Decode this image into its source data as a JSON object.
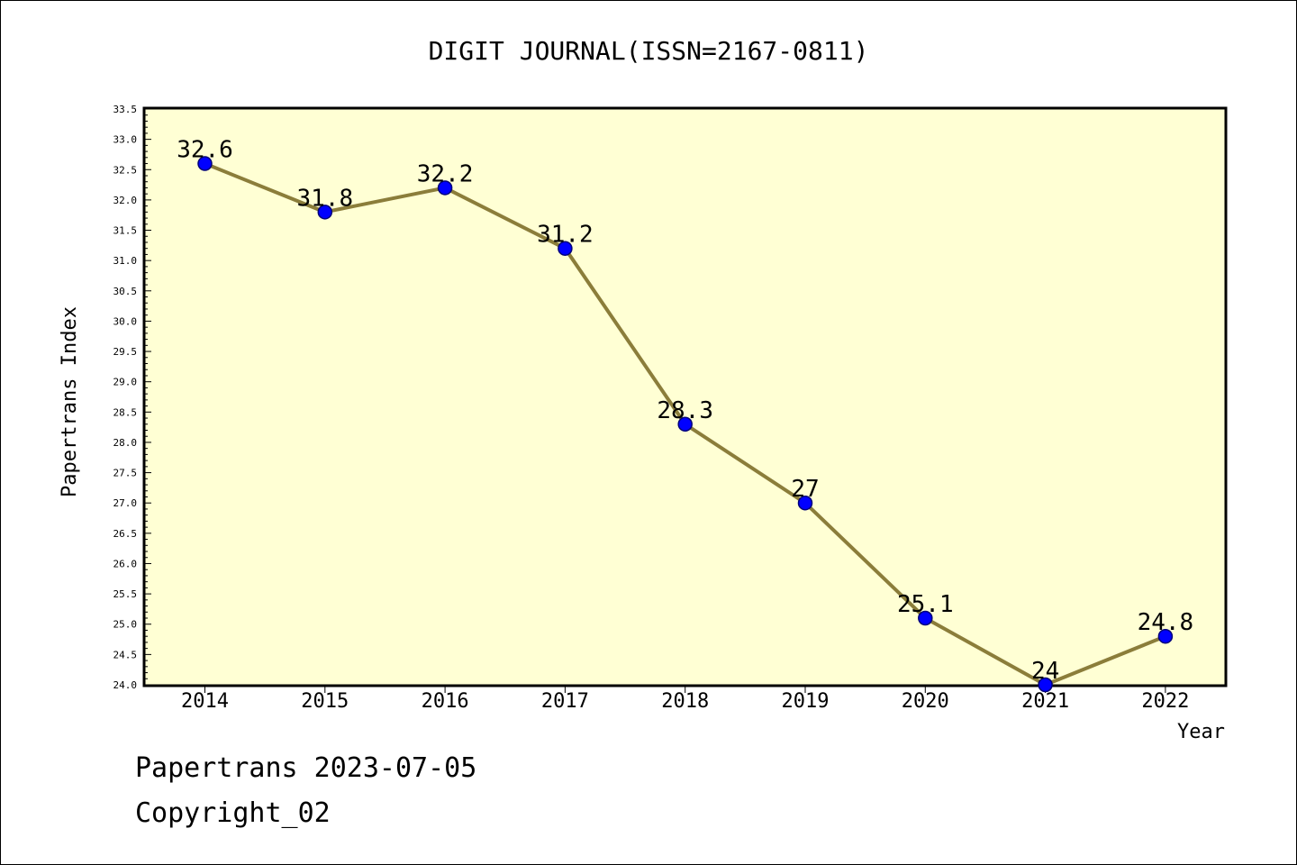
{
  "chart_data": {
    "type": "line",
    "title": "DIGIT JOURNAL(ISSN=2167-0811)",
    "xlabel": "Year",
    "ylabel": "Papertrans Index",
    "categories": [
      "2014",
      "2015",
      "2016",
      "2017",
      "2018",
      "2019",
      "2020",
      "2021",
      "2022"
    ],
    "values": [
      32.6,
      31.8,
      32.2,
      31.2,
      28.3,
      27.0,
      25.1,
      24.0,
      24.8
    ],
    "data_labels": [
      "32.6",
      "31.8",
      "32.2",
      "31.2",
      "28.3",
      "27",
      "25.1",
      "24",
      "24.8"
    ],
    "ylim": [
      24.0,
      33.5
    ],
    "yticks": [
      "24.0",
      "24.5",
      "25.0",
      "25.5",
      "26.0",
      "26.5",
      "27.0",
      "27.5",
      "28.0",
      "28.5",
      "29.0",
      "29.5",
      "30.0",
      "30.5",
      "31.0",
      "31.5",
      "32.0",
      "32.5",
      "33.0",
      "33.5"
    ],
    "grid": false,
    "legend": "none",
    "colors": {
      "plot_background": "#ffffd4",
      "line": "#8b7d3a",
      "marker": "#0000ff"
    }
  },
  "footer": {
    "line1": "Papertrans 2023-07-05",
    "line2": "Copyright_02"
  }
}
